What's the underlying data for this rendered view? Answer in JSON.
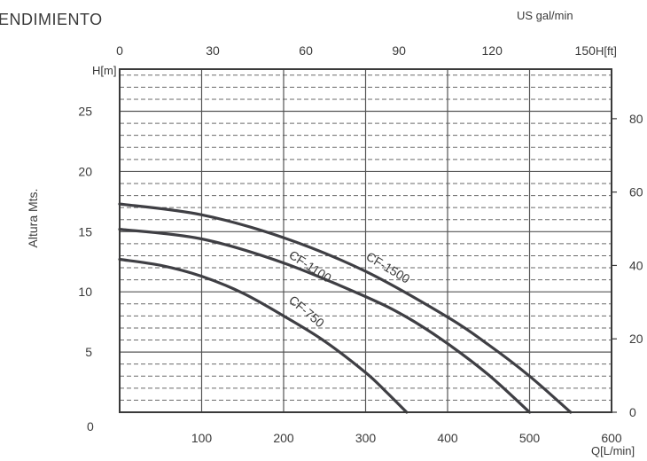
{
  "chart_data": {
    "type": "line",
    "title": "ENDIMIENTO",
    "ylabel": "Altura Mts.",
    "x_axis_bottom": {
      "unit_label": "Q[L/min]",
      "range": [
        0,
        600
      ],
      "ticks": [
        100,
        200,
        300,
        400,
        500,
        600
      ],
      "origin_label": "0"
    },
    "x_axis_top": {
      "unit_label": "US gal/min",
      "range": [
        0,
        158.5
      ],
      "ticks": [
        0,
        30,
        60,
        90,
        120,
        150
      ]
    },
    "y_axis_left": {
      "unit_label": "H[m]",
      "range": [
        0,
        28.5
      ],
      "ticks": [
        5,
        10,
        15,
        20,
        25
      ]
    },
    "y_axis_right": {
      "unit_label": "H[ft]",
      "range": [
        0,
        93.5
      ],
      "ticks": [
        0,
        20,
        40,
        60,
        80
      ]
    },
    "grid": true,
    "series": [
      {
        "name": "CF-750",
        "x": [
          0,
          50,
          100,
          150,
          200,
          250,
          300,
          325,
          350
        ],
        "y": [
          12.7,
          12.2,
          11.3,
          9.9,
          8.0,
          5.9,
          3.3,
          1.7,
          0
        ]
      },
      {
        "name": "CF-1100",
        "x": [
          0,
          100,
          200,
          300,
          350,
          400,
          450,
          500
        ],
        "y": [
          15.2,
          14.4,
          12.4,
          9.6,
          7.9,
          5.7,
          3.1,
          0
        ]
      },
      {
        "name": "CF-1500",
        "x": [
          0,
          100,
          200,
          300,
          400,
          450,
          500,
          550
        ],
        "y": [
          17.3,
          16.4,
          14.5,
          11.7,
          7.9,
          5.6,
          3.0,
          0
        ]
      }
    ]
  }
}
